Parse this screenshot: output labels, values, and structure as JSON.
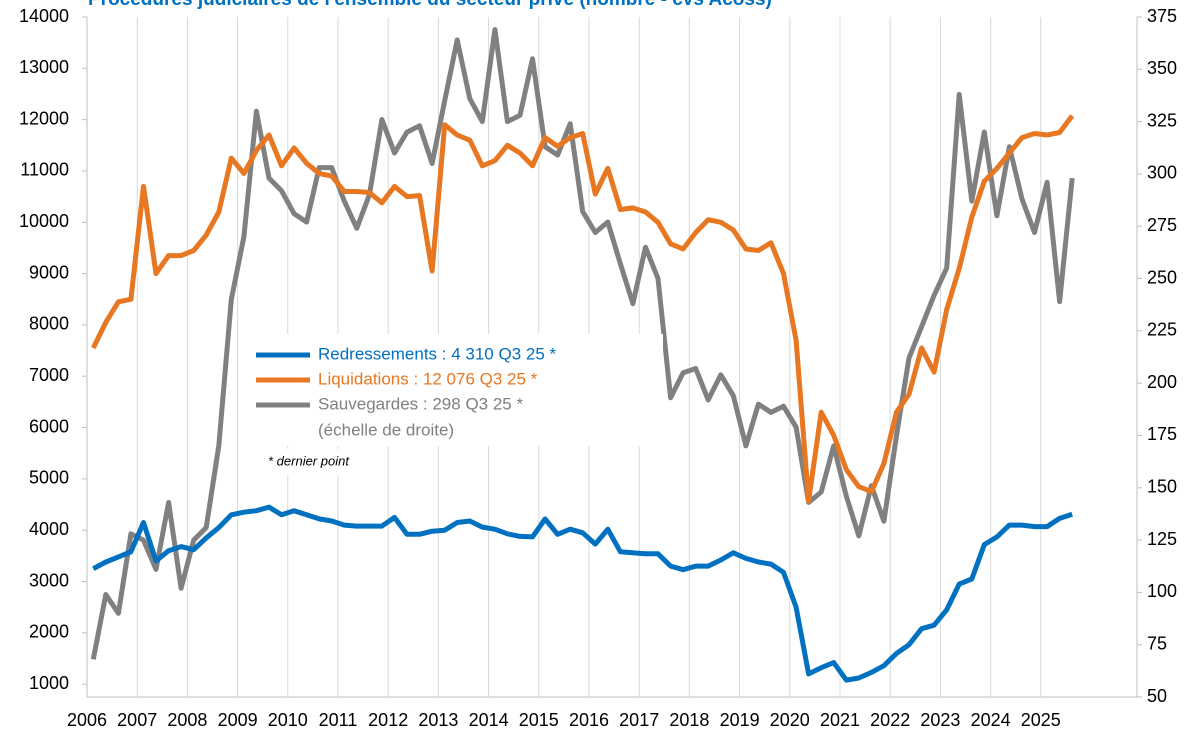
{
  "chart_data": {
    "type": "line",
    "title": "Procédures judiciaires de l'ensemble du secteur privé (nombre - cvs Acoss)",
    "legend_note": "(échelle de droite)",
    "note": "* dernier point",
    "categories": [
      "2006",
      null,
      null,
      null,
      "2007",
      null,
      null,
      null,
      "2008",
      null,
      null,
      null,
      "2009",
      null,
      null,
      null,
      "2010",
      null,
      null,
      null,
      "2011",
      null,
      null,
      null,
      "2012",
      null,
      null,
      null,
      "2013",
      null,
      null,
      null,
      "2014",
      null,
      null,
      null,
      "2015",
      null,
      null,
      null,
      "2016",
      null,
      null,
      null,
      "2017",
      null,
      null,
      null,
      "2018",
      null,
      null,
      null,
      "2019",
      null,
      null,
      null,
      "2020",
      null,
      null,
      null,
      "2021",
      null,
      null,
      null,
      "2022",
      null,
      null,
      null,
      "2023",
      null,
      null,
      null,
      "2024",
      null,
      null,
      null,
      "2025",
      null,
      null
    ],
    "series": [
      {
        "name": "Redressements : 4 310 Q3 25 *",
        "color": "#0070c0",
        "axis": "y",
        "values": [
          3250,
          3380,
          3480,
          3580,
          4150,
          3400,
          3600,
          3680,
          3620,
          3850,
          4050,
          4300,
          4350,
          4380,
          4450,
          4300,
          4380,
          4300,
          4220,
          4180,
          4100,
          4080,
          4080,
          4080,
          4250,
          3920,
          3920,
          3980,
          4000,
          4150,
          4180,
          4060,
          4020,
          3930,
          3880,
          3870,
          4220,
          3920,
          4020,
          3950,
          3730,
          4020,
          3580,
          3560,
          3540,
          3540,
          3300,
          3230,
          3300,
          3300,
          3420,
          3560,
          3450,
          3380,
          3340,
          3180,
          2500,
          1200,
          1320,
          1420,
          1080,
          1120,
          1230,
          1360,
          1600,
          1770,
          2080,
          2150,
          2450,
          2950,
          3050,
          3720,
          3870,
          4100,
          4100,
          4070,
          4070,
          4230,
          4310
        ]
      },
      {
        "name": "Liquidations : 12 076 Q3 25 *",
        "color": "#e87722",
        "axis": "y",
        "values": [
          7550,
          8050,
          8450,
          8500,
          10700,
          9000,
          9350,
          9350,
          9450,
          9750,
          10200,
          11250,
          10950,
          11400,
          11700,
          11100,
          11450,
          11150,
          10950,
          10900,
          10600,
          10600,
          10580,
          10380,
          10700,
          10500,
          10520,
          9050,
          11900,
          11700,
          11600,
          11100,
          11200,
          11500,
          11350,
          11100,
          11650,
          11480,
          11650,
          11730,
          10550,
          11050,
          10250,
          10280,
          10200,
          10000,
          9580,
          9480,
          9800,
          10050,
          10000,
          9850,
          9480,
          9450,
          9600,
          9000,
          7700,
          4570,
          6300,
          5850,
          5180,
          4850,
          4750,
          5300,
          6300,
          6650,
          7550,
          7080,
          8300,
          9100,
          10100,
          10800,
          11050,
          11350,
          11650,
          11730,
          11700,
          11750,
          12076
        ]
      },
      {
        "name": "Sauvegardes : 298 Q3 25 *",
        "color": "#808080",
        "axis": "y2",
        "values": [
          68,
          99,
          90,
          128,
          125,
          111,
          143,
          102,
          125,
          131,
          170,
          240,
          270,
          330,
          298,
          292,
          281,
          277,
          303,
          303,
          287,
          274,
          290,
          326,
          310,
          320,
          323,
          305,
          335,
          364,
          336,
          325,
          369,
          325,
          328,
          355,
          313,
          309,
          324,
          282,
          272,
          277,
          257,
          238,
          265,
          250,
          193,
          205,
          207,
          192,
          204,
          194,
          170,
          190,
          186,
          189,
          179,
          143,
          148,
          170,
          146,
          127,
          151,
          134,
          175,
          212,
          227,
          242,
          255,
          338,
          287,
          320,
          280,
          313,
          288,
          272,
          296,
          239,
          298
        ]
      }
    ],
    "ylim": [
      750,
      14000
    ],
    "yticks": [
      1000,
      2000,
      3000,
      4000,
      5000,
      6000,
      7000,
      8000,
      9000,
      10000,
      11000,
      12000,
      13000,
      14000
    ],
    "y2lim": [
      50,
      375
    ],
    "y2ticks": [
      50,
      75,
      100,
      125,
      150,
      175,
      200,
      225,
      250,
      275,
      300,
      325,
      350,
      375
    ],
    "grid": true
  }
}
